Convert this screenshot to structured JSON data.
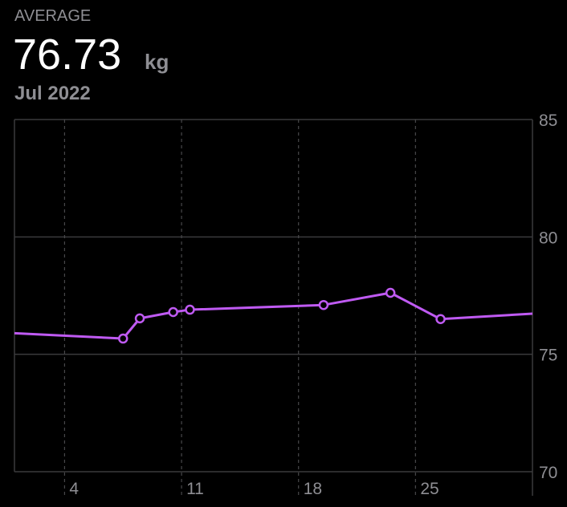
{
  "chart_data": {
    "type": "line",
    "label": "AVERAGE",
    "average": 76.73,
    "unit": "kg",
    "period": "Jul 2022",
    "x": [
      1,
      7.5,
      8.5,
      10.5,
      11.5,
      19.5,
      23.5,
      26.5,
      32
    ],
    "series": [
      {
        "color": "#bf5af2",
        "values": [
          75.9,
          75.67,
          76.53,
          76.8,
          76.9,
          77.1,
          77.62,
          76.5,
          76.73
        ]
      }
    ],
    "xlim": [
      1,
      32
    ],
    "xticks": [
      4,
      11,
      18,
      25
    ],
    "ylim": [
      70,
      85
    ],
    "yticks": [
      70,
      75,
      80,
      85
    ],
    "grid": true
  }
}
